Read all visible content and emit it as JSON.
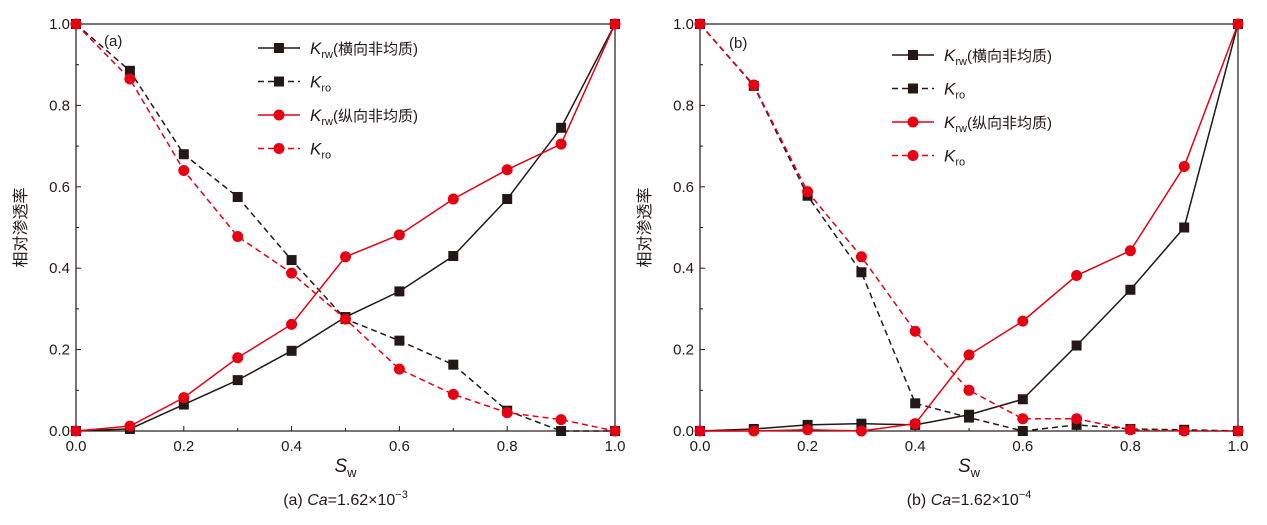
{
  "chart_data": [
    {
      "type": "line",
      "panel_label": "(a)",
      "xlabel": {
        "symbol": "S",
        "sub": "w"
      },
      "ylabel": "相对渗透率",
      "xlim": [
        0,
        1
      ],
      "ylim": [
        0,
        1
      ],
      "xticks": [
        "0.0",
        "0.2",
        "0.4",
        "0.6",
        "0.8",
        "1.0"
      ],
      "yticks": [
        "0.0",
        "0.2",
        "0.4",
        "0.6",
        "0.8",
        "1.0"
      ],
      "caption": {
        "prefix": "(a) ",
        "var": "Ca",
        "value": "=1.62×10",
        "exp": "−3"
      },
      "x": [
        0,
        0.1,
        0.2,
        0.3,
        0.4,
        0.5,
        0.6,
        0.7,
        0.8,
        0.9,
        1.0
      ],
      "series": [
        {
          "name": "Krw(横向非均质)",
          "label": {
            "symbol": "K",
            "sub": "rw",
            "suffix": "(横向非均质)"
          },
          "color": "#231815",
          "dashed": false,
          "marker": "square",
          "values": [
            0,
            0.005,
            0.065,
            0.125,
            0.197,
            0.28,
            0.343,
            0.43,
            0.57,
            0.745,
            1.0
          ]
        },
        {
          "name": "Kro",
          "label": {
            "symbol": "K",
            "sub": "ro",
            "suffix": ""
          },
          "color": "#231815",
          "dashed": true,
          "marker": "square",
          "values": [
            1.0,
            0.885,
            0.68,
            0.575,
            0.42,
            0.275,
            0.222,
            0.163,
            0.05,
            0.0,
            0.0
          ]
        },
        {
          "name": "Krw(纵向非均质)",
          "label": {
            "symbol": "K",
            "sub": "rw",
            "suffix": "(纵向非均质)"
          },
          "color": "#e60012",
          "dashed": false,
          "marker": "circle",
          "values": [
            0,
            0.012,
            0.082,
            0.18,
            0.262,
            0.428,
            0.482,
            0.57,
            0.642,
            0.705,
            1.0
          ]
        },
        {
          "name": "Kro",
          "label": {
            "symbol": "K",
            "sub": "ro",
            "suffix": ""
          },
          "color": "#e60012",
          "dashed": true,
          "marker": "circle",
          "values": [
            1.0,
            0.865,
            0.64,
            0.478,
            0.388,
            0.275,
            0.152,
            0.09,
            0.045,
            0.028,
            0.0
          ]
        }
      ],
      "legend": "top-center"
    },
    {
      "type": "line",
      "panel_label": "(b)",
      "xlabel": {
        "symbol": "S",
        "sub": "w"
      },
      "ylabel": "相对渗透率",
      "xlim": [
        0,
        1
      ],
      "ylim": [
        0,
        1
      ],
      "xticks": [
        "0.0",
        "0.2",
        "0.4",
        "0.6",
        "0.8",
        "1.0"
      ],
      "yticks": [
        "0.0",
        "0.2",
        "0.4",
        "0.6",
        "0.8",
        "1.0"
      ],
      "caption": {
        "prefix": "(b) ",
        "var": "Ca",
        "value": "=1.62×10",
        "exp": "−4"
      },
      "x": [
        0,
        0.1,
        0.2,
        0.3,
        0.4,
        0.5,
        0.6,
        0.7,
        0.8,
        0.9,
        1.0
      ],
      "series": [
        {
          "name": "Krw(横向非均质)",
          "label": {
            "symbol": "K",
            "sub": "rw",
            "suffix": "(横向非均质)"
          },
          "color": "#231815",
          "dashed": false,
          "marker": "square",
          "values": [
            0,
            0.005,
            0.015,
            0.018,
            0.015,
            0.04,
            0.078,
            0.21,
            0.347,
            0.5,
            1.0
          ]
        },
        {
          "name": "Kro",
          "label": {
            "symbol": "K",
            "sub": "ro",
            "suffix": ""
          },
          "color": "#231815",
          "dashed": true,
          "marker": "square",
          "values": [
            1.0,
            0.848,
            0.578,
            0.39,
            0.068,
            0.033,
            0.0,
            0.015,
            0.005,
            0.003,
            0.0
          ]
        },
        {
          "name": "Krw(纵向非均质)",
          "label": {
            "symbol": "K",
            "sub": "rw",
            "suffix": "(纵向非均质)"
          },
          "color": "#e60012",
          "dashed": false,
          "marker": "circle",
          "values": [
            0,
            0.0,
            0.003,
            0.0,
            0.018,
            0.187,
            0.27,
            0.382,
            0.443,
            0.65,
            1.0
          ]
        },
        {
          "name": "Kro",
          "label": {
            "symbol": "K",
            "sub": "ro",
            "suffix": ""
          },
          "color": "#e60012",
          "dashed": true,
          "marker": "circle",
          "values": [
            1.0,
            0.85,
            0.588,
            0.428,
            0.245,
            0.1,
            0.03,
            0.03,
            0.003,
            0.0,
            0.0
          ]
        }
      ],
      "legend": "top-center"
    }
  ]
}
